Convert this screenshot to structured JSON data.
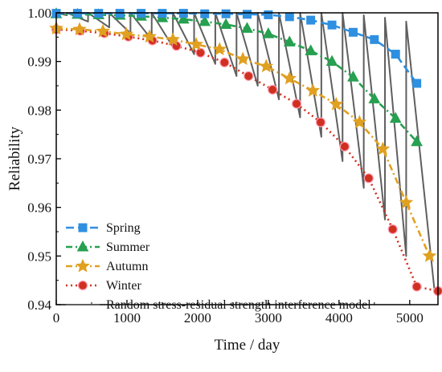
{
  "chart_data": {
    "type": "line",
    "xlabel": "Time / day",
    "ylabel": "Reliability",
    "xlim": [
      0,
      5400
    ],
    "ylim": [
      0.94,
      1.0
    ],
    "xticks": [
      0,
      1000,
      2000,
      3000,
      4000,
      5000
    ],
    "xtick_labels": [
      "0",
      "1000",
      "2000",
      "3000",
      "4000",
      "5000"
    ],
    "yticks": [
      0.94,
      0.95,
      0.96,
      0.97,
      0.98,
      0.99,
      1.0
    ],
    "ytick_labels": [
      "0.94",
      "0.95",
      "0.96",
      "0.97",
      "0.98",
      "0.99",
      "1.00"
    ],
    "legend_position": "bottom-left",
    "series": [
      {
        "name": "Spring",
        "color": "#2f8fe0",
        "marker": "square",
        "line_style": "dashed",
        "x": [
          0,
          300,
          600,
          900,
          1200,
          1500,
          1800,
          2100,
          2400,
          2700,
          3000,
          3300,
          3600,
          3900,
          4200,
          4500,
          4800,
          5100
        ],
        "y": [
          0.9999,
          0.9999,
          0.9999,
          0.9999,
          0.9999,
          0.9999,
          0.9999,
          0.9998,
          0.9998,
          0.9997,
          0.9996,
          0.9992,
          0.9985,
          0.9975,
          0.996,
          0.9945,
          0.9915,
          0.9855
        ]
      },
      {
        "name": "Summer",
        "color": "#27a050",
        "marker": "triangle",
        "line_style": "dash-dot",
        "x": [
          0,
          300,
          600,
          900,
          1200,
          1500,
          1800,
          2100,
          2400,
          2700,
          3000,
          3300,
          3600,
          3900,
          4200,
          4500,
          4800,
          5100
        ],
        "y": [
          0.9998,
          0.9997,
          0.9996,
          0.9995,
          0.9993,
          0.999,
          0.9987,
          0.9982,
          0.9976,
          0.9968,
          0.9957,
          0.994,
          0.9922,
          0.99,
          0.9868,
          0.9823,
          0.9783,
          0.9735
        ]
      },
      {
        "name": "Autumn",
        "color": "#e0a020",
        "marker": "star",
        "line_style": "dash-dot",
        "x": [
          0,
          330,
          660,
          990,
          1320,
          1650,
          1980,
          2310,
          2640,
          2970,
          3300,
          3630,
          3960,
          4290,
          4620,
          4950,
          5280
        ],
        "y": [
          0.9968,
          0.9966,
          0.9962,
          0.9956,
          0.9951,
          0.9945,
          0.9935,
          0.9925,
          0.9905,
          0.989,
          0.9865,
          0.984,
          0.9812,
          0.9775,
          0.972,
          0.961,
          0.95
        ]
      },
      {
        "name": "Winter",
        "color": "#d03020",
        "marker": "circle",
        "line_style": "dotted",
        "x": [
          0,
          340,
          680,
          1020,
          1360,
          1700,
          2040,
          2380,
          2720,
          3060,
          3400,
          3740,
          4080,
          4420,
          4760,
          5100,
          5400
        ],
        "y": [
          0.9966,
          0.9963,
          0.9958,
          0.9951,
          0.9943,
          0.9932,
          0.9918,
          0.9898,
          0.987,
          0.9842,
          0.9813,
          0.9775,
          0.9725,
          0.966,
          0.9555,
          0.9437,
          0.9428
        ]
      },
      {
        "name": "Random stress-residual strength interference model",
        "color": "#5f5f5f",
        "marker": "none",
        "line_style": "solid",
        "x": [
          0,
          150,
          150,
          450,
          450,
          750,
          750,
          1050,
          1050,
          1350,
          1350,
          1650,
          1650,
          1950,
          1950,
          2250,
          2250,
          2550,
          2550,
          2850,
          2850,
          3150,
          3150,
          3450,
          3450,
          3750,
          3750,
          4050,
          4050,
          4350,
          4350,
          4650,
          4650,
          4950,
          4950,
          5350
        ],
        "y": [
          1.0,
          0.9995,
          1.0,
          0.9982,
          1.0,
          0.997,
          1.0,
          0.9958,
          1.0,
          0.9945,
          1.0,
          0.993,
          1.0,
          0.9915,
          1.0,
          0.9895,
          1.0,
          0.987,
          1.0,
          0.985,
          1.0,
          0.9822,
          1.0,
          0.9785,
          1.0,
          0.9745,
          1.0,
          0.9695,
          1.0,
          0.964,
          0.9995,
          0.9575,
          0.999,
          0.95,
          0.9982,
          0.943
        ]
      }
    ]
  }
}
